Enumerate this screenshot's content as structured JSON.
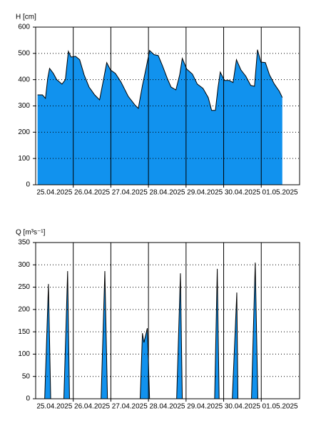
{
  "chart_data": [
    {
      "type": "area",
      "y_label": "H [cm]",
      "color": "#1192ee",
      "x": [
        0.05,
        0.18,
        0.26,
        0.32,
        0.37,
        0.47,
        0.56,
        0.7,
        0.79,
        0.87,
        0.94,
        1.06,
        1.17,
        1.29,
        1.42,
        1.57,
        1.7,
        1.8,
        1.89,
        1.99,
        2.12,
        2.27,
        2.46,
        2.65,
        2.73,
        2.84,
        2.94,
        3.03,
        3.15,
        3.26,
        3.37,
        3.5,
        3.6,
        3.73,
        3.83,
        3.9,
        4.02,
        4.17,
        4.3,
        4.45,
        4.59,
        4.68,
        4.78,
        4.85,
        4.91,
        5.02,
        5.15,
        5.25,
        5.34,
        5.46,
        5.59,
        5.72,
        5.82,
        5.9,
        5.99,
        6.11,
        6.22,
        6.35,
        6.48,
        6.56
      ],
      "values": [
        342,
        342,
        329,
        405,
        443,
        424,
        400,
        383,
        400,
        508,
        486,
        489,
        476,
        418,
        372,
        342,
        323,
        397,
        465,
        437,
        424,
        391,
        337,
        302,
        291,
        378,
        446,
        511,
        495,
        492,
        454,
        405,
        372,
        361,
        418,
        481,
        440,
        421,
        383,
        367,
        332,
        283,
        283,
        370,
        429,
        397,
        397,
        389,
        476,
        437,
        413,
        378,
        375,
        514,
        467,
        465,
        418,
        383,
        356,
        332
      ],
      "xlim": [
        0,
        7.02
      ],
      "xticks": [
        {
          "value": 0.5,
          "label": "25.04.2025"
        },
        {
          "value": 1.5,
          "label": "26.04.2025"
        },
        {
          "value": 2.5,
          "label": "27.04.2025"
        },
        {
          "value": 3.5,
          "label": "28.04.2025"
        },
        {
          "value": 4.5,
          "label": "29.04.2025"
        },
        {
          "value": 5.5,
          "label": "30.04.2025"
        },
        {
          "value": 6.5,
          "label": "01.05.2025"
        }
      ],
      "xgrid": [
        1,
        2,
        3,
        4,
        5,
        6
      ],
      "ylim": [
        0,
        600
      ],
      "yticks": [
        0,
        100,
        200,
        300,
        400,
        500,
        600
      ],
      "grid": true
    },
    {
      "type": "area",
      "y_label": "Q [m³s⁻¹]",
      "color": "#1192ee",
      "x": [
        0.05,
        0.24,
        0.34,
        0.4,
        0.75,
        0.85,
        0.9,
        1.74,
        1.84,
        1.91,
        2.78,
        2.84,
        2.88,
        2.97,
        3.03,
        3.75,
        3.85,
        3.9,
        4.76,
        4.83,
        4.88,
        5.23,
        5.35,
        5.38,
        5.74,
        5.84,
        5.91,
        6.56
      ],
      "values": [
        0,
        0,
        257,
        0,
        0,
        286,
        0,
        0,
        286,
        0,
        0,
        147,
        126,
        158,
        0,
        0,
        281,
        0,
        0,
        291,
        0,
        0,
        238,
        0,
        0,
        305,
        0,
        0
      ],
      "xlim": [
        0,
        7.02
      ],
      "xticks": [
        {
          "value": 0.5,
          "label": "25.04.2025"
        },
        {
          "value": 1.5,
          "label": "26.04.2025"
        },
        {
          "value": 2.5,
          "label": "27.04.2025"
        },
        {
          "value": 3.5,
          "label": "28.04.2025"
        },
        {
          "value": 4.5,
          "label": "29.04.2025"
        },
        {
          "value": 5.5,
          "label": "30.04.2025"
        },
        {
          "value": 6.5,
          "label": "01.05.2025"
        }
      ],
      "xgrid": [
        1,
        2,
        3,
        4,
        5,
        6
      ],
      "ylim": [
        0,
        350
      ],
      "yticks": [
        0,
        50,
        100,
        150,
        200,
        250,
        300,
        350
      ],
      "grid": true
    }
  ]
}
